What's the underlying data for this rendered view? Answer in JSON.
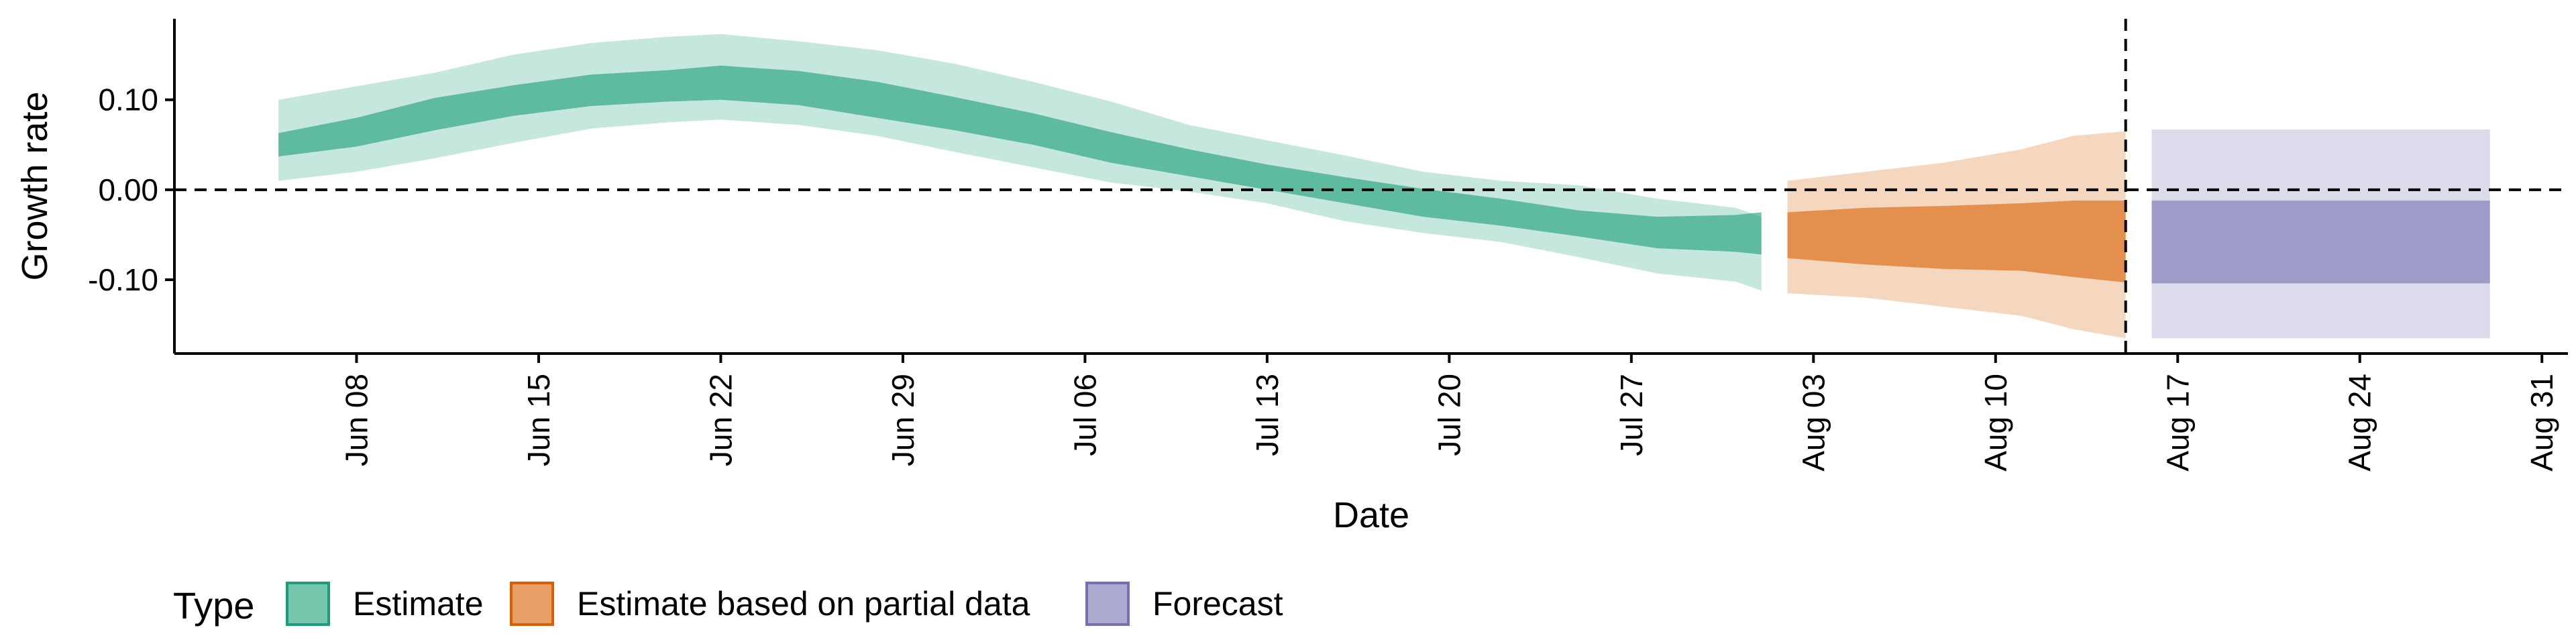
{
  "chart_data": {
    "type": "area",
    "xlabel": "Date",
    "ylabel": "Growth rate",
    "x_start": "2020-06-05",
    "xlim": [
      "2020-06-01",
      "2020-09-01"
    ],
    "ylim": [
      -0.182,
      0.19
    ],
    "y_ticks": [
      0.1,
      0.0,
      -0.1
    ],
    "y_tick_labels": [
      "0.10",
      "0.00",
      "-0.10"
    ],
    "x_ticks": [
      "2020-06-08",
      "2020-06-15",
      "2020-06-22",
      "2020-06-29",
      "2020-07-06",
      "2020-07-13",
      "2020-07-20",
      "2020-07-27",
      "2020-08-03",
      "2020-08-10",
      "2020-08-17",
      "2020-08-24",
      "2020-08-31"
    ],
    "x_tick_labels": [
      "Jun 08",
      "Jun 15",
      "Jun 22",
      "Jun 29",
      "Jul 06",
      "Jul 13",
      "Jul 20",
      "Jul 27",
      "Aug 03",
      "Aug 10",
      "Aug 17",
      "Aug 24",
      "Aug 31"
    ],
    "hline_y": 0,
    "vline_x": "2020-08-15",
    "legend_title": "Type",
    "legend_position": "bottom",
    "series": [
      {
        "name": "Estimate",
        "color": "#1b9e77",
        "dates": [
          "2020-06-05",
          "2020-06-08",
          "2020-06-11",
          "2020-06-14",
          "2020-06-17",
          "2020-06-20",
          "2020-06-22",
          "2020-06-25",
          "2020-06-28",
          "2020-07-01",
          "2020-07-04",
          "2020-07-07",
          "2020-07-10",
          "2020-07-13",
          "2020-07-16",
          "2020-07-19",
          "2020-07-22",
          "2020-07-25",
          "2020-07-28",
          "2020-07-31",
          "2020-08-01"
        ],
        "lower_90": [
          0.01,
          0.02,
          0.035,
          0.052,
          0.068,
          0.075,
          0.078,
          0.072,
          0.06,
          0.042,
          0.025,
          0.008,
          -0.002,
          -0.015,
          -0.035,
          -0.048,
          -0.058,
          -0.075,
          -0.093,
          -0.102,
          -0.112
        ],
        "lower_50": [
          0.037,
          0.048,
          0.066,
          0.082,
          0.093,
          0.098,
          0.1,
          0.094,
          0.08,
          0.066,
          0.05,
          0.03,
          0.015,
          0.0,
          -0.015,
          -0.03,
          -0.04,
          -0.052,
          -0.065,
          -0.069,
          -0.072
        ],
        "upper_50": [
          0.063,
          0.08,
          0.102,
          0.116,
          0.128,
          0.133,
          0.138,
          0.132,
          0.12,
          0.103,
          0.085,
          0.064,
          0.045,
          0.028,
          0.014,
          0.001,
          -0.01,
          -0.023,
          -0.03,
          -0.028,
          -0.025
        ],
        "upper_90": [
          0.1,
          0.115,
          0.13,
          0.15,
          0.163,
          0.17,
          0.173,
          0.165,
          0.155,
          0.14,
          0.12,
          0.098,
          0.072,
          0.055,
          0.038,
          0.02,
          0.01,
          0.005,
          -0.01,
          -0.02,
          -0.03
        ]
      },
      {
        "name": "Estimate based on partial data",
        "color": "#d95f02",
        "dates": [
          "2020-08-02",
          "2020-08-05",
          "2020-08-08",
          "2020-08-11",
          "2020-08-13",
          "2020-08-15"
        ],
        "lower_90": [
          -0.115,
          -0.12,
          -0.13,
          -0.14,
          -0.155,
          -0.165
        ],
        "lower_50": [
          -0.076,
          -0.083,
          -0.088,
          -0.09,
          -0.097,
          -0.103
        ],
        "upper_50": [
          -0.025,
          -0.02,
          -0.018,
          -0.015,
          -0.012,
          -0.012
        ],
        "upper_90": [
          0.01,
          0.02,
          0.03,
          0.045,
          0.06,
          0.065
        ]
      },
      {
        "name": "Forecast",
        "color": "#7570b3",
        "dates": [
          "2020-08-16",
          "2020-08-29"
        ],
        "lower_90": [
          -0.165,
          -0.165
        ],
        "lower_50": [
          -0.104,
          -0.104
        ],
        "upper_50": [
          -0.012,
          -0.012
        ],
        "upper_90": [
          0.067,
          0.067
        ]
      }
    ]
  }
}
